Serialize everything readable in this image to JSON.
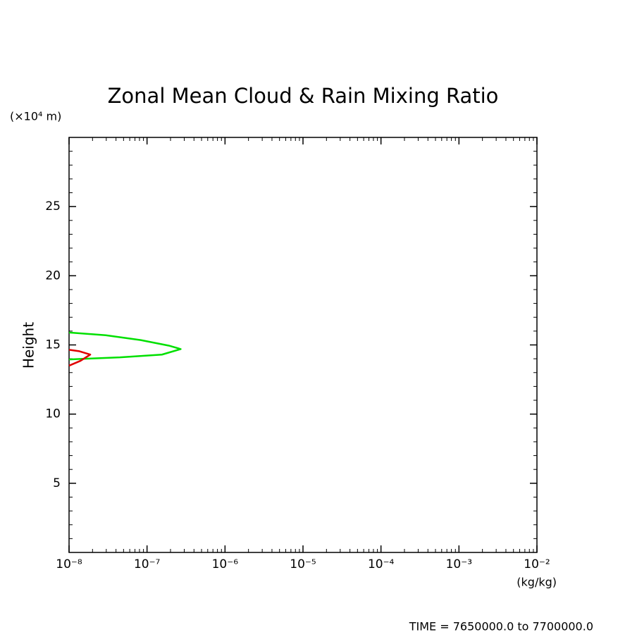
{
  "chart_data": {
    "type": "line",
    "title": "Zonal Mean Cloud & Rain Mixing Ratio",
    "y_label": "Height",
    "y_unit": "(×10⁴ m)",
    "x_unit": "(kg/kg)",
    "footer": "TIME = 7650000.0 to 7700000.0",
    "x_log": true,
    "minor_ticks": true,
    "xlim": [
      1e-08,
      0.01
    ],
    "xticks": [
      {
        "value": 1e-08,
        "label": "10⁻⁸"
      },
      {
        "value": 1e-07,
        "label": "10⁻⁷"
      },
      {
        "value": 1e-06,
        "label": "10⁻⁶"
      },
      {
        "value": 1e-05,
        "label": "10⁻⁵"
      },
      {
        "value": 0.0001,
        "label": "10⁻⁴"
      },
      {
        "value": 0.001,
        "label": "10⁻³"
      },
      {
        "value": 0.01,
        "label": "10⁻²"
      }
    ],
    "ylim": [
      0,
      30
    ],
    "yticks": [
      5,
      10,
      15,
      20,
      25
    ],
    "series": [
      {
        "color": "#00e000",
        "x": [
          1e-08,
          2.95e-08,
          8.3e-08,
          1.9e-07,
          2.7e-07,
          1.55e-07,
          4.5e-08,
          1.58e-08,
          1e-08
        ],
        "values": [
          15.9,
          15.7,
          15.35,
          14.95,
          14.7,
          14.3,
          14.1,
          14.0,
          13.95
        ]
      },
      {
        "color": "#e00000",
        "x": [
          1e-08,
          1.34e-08,
          1.87e-08,
          1.4e-08,
          1e-08
        ],
        "values": [
          14.65,
          14.55,
          14.3,
          13.85,
          13.5
        ]
      }
    ]
  }
}
